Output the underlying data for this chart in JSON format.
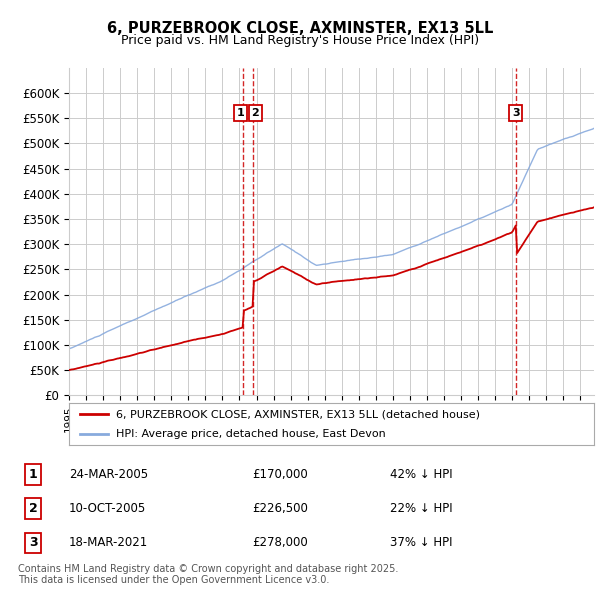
{
  "title": "6, PURZEBROOK CLOSE, AXMINSTER, EX13 5LL",
  "subtitle": "Price paid vs. HM Land Registry's House Price Index (HPI)",
  "ylim": [
    0,
    650000
  ],
  "yticks": [
    0,
    50000,
    100000,
    150000,
    200000,
    250000,
    300000,
    350000,
    400000,
    450000,
    500000,
    550000,
    600000
  ],
  "ytick_labels": [
    "£0",
    "£50K",
    "£100K",
    "£150K",
    "£200K",
    "£250K",
    "£300K",
    "£350K",
    "£400K",
    "£450K",
    "£500K",
    "£550K",
    "£600K"
  ],
  "xlim_start": 1995.0,
  "xlim_end": 2025.8,
  "sale_events": [
    {
      "num": 1,
      "year": 2005.23,
      "price": 170000
    },
    {
      "num": 2,
      "year": 2005.78,
      "price": 226500
    },
    {
      "num": 3,
      "year": 2021.21,
      "price": 278000
    }
  ],
  "hpi_line_color": "#88aadd",
  "property_line_color": "#cc0000",
  "grid_color": "#cccccc",
  "background_color": "#ffffff",
  "legend_label_property": "6, PURZEBROOK CLOSE, AXMINSTER, EX13 5LL (detached house)",
  "legend_label_hpi": "HPI: Average price, detached house, East Devon",
  "footnote": "Contains HM Land Registry data © Crown copyright and database right 2025.\nThis data is licensed under the Open Government Licence v3.0.",
  "table_rows": [
    {
      "num": 1,
      "date": "24-MAR-2005",
      "price": "£170,000",
      "pct": "42% ↓ HPI"
    },
    {
      "num": 2,
      "date": "10-OCT-2005",
      "price": "£226,500",
      "pct": "22% ↓ HPI"
    },
    {
      "num": 3,
      "date": "18-MAR-2021",
      "price": "£278,000",
      "pct": "37% ↓ HPI"
    }
  ]
}
